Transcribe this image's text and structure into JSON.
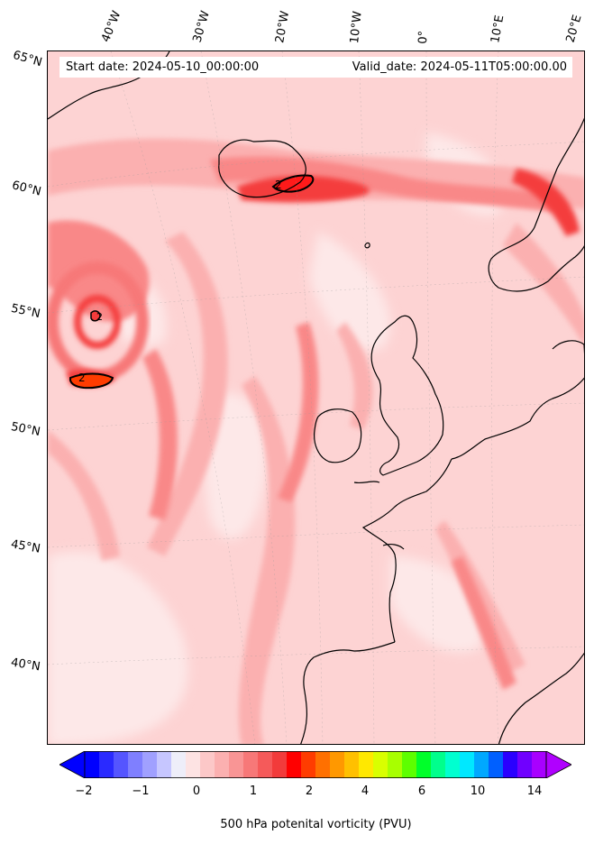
{
  "map": {
    "start_date": "Start date: 2024-05-10_00:00:00",
    "valid_date": "Valid_date: 2024-05-11T05:00:00.00",
    "lon_labels": [
      "40°W",
      "30°W",
      "20°W",
      "10°W",
      "0°",
      "10°E",
      "20°E"
    ],
    "lat_labels": [
      "65°N",
      "60°N",
      "55°N",
      "50°N",
      "45°N",
      "40°N"
    ],
    "contour_labels": [
      "2",
      "2",
      "2"
    ],
    "field_colors": {
      "very_light": "#fde8e8",
      "light": "#fdd3d3",
      "mid": "#fbb0b0",
      "strong": "#f98888",
      "red": "#f43c3c",
      "deep": "#ff1a1a",
      "orange_red": "#ff3c00"
    },
    "coastline_color": "#000000"
  },
  "colorbar": {
    "label": "500 hPa potenital vorticity (PVU)",
    "ticks": [
      "−2",
      "−1",
      "0",
      "1",
      "2",
      "4",
      "6",
      "10",
      "14"
    ],
    "colors": [
      "#0000ff",
      "#2a2aff",
      "#5555ff",
      "#7f7fff",
      "#a0a0ff",
      "#c6c6ff",
      "#eeeef9",
      "#fde3e3",
      "#fcc8c8",
      "#fbb0b0",
      "#f99595",
      "#f77878",
      "#f55a5a",
      "#f23b3b",
      "#ff0000",
      "#ff3c00",
      "#ff7000",
      "#ff9800",
      "#ffc000",
      "#ffe800",
      "#d9ff00",
      "#a8ff00",
      "#5dff00",
      "#00ff2a",
      "#00ff8c",
      "#00ffd0",
      "#00e8ff",
      "#00a8ff",
      "#0060ff",
      "#2a00ff",
      "#7000ff",
      "#a800ff"
    ],
    "extend_low_color": "#0000ff",
    "extend_high_color": "#b000ff"
  }
}
